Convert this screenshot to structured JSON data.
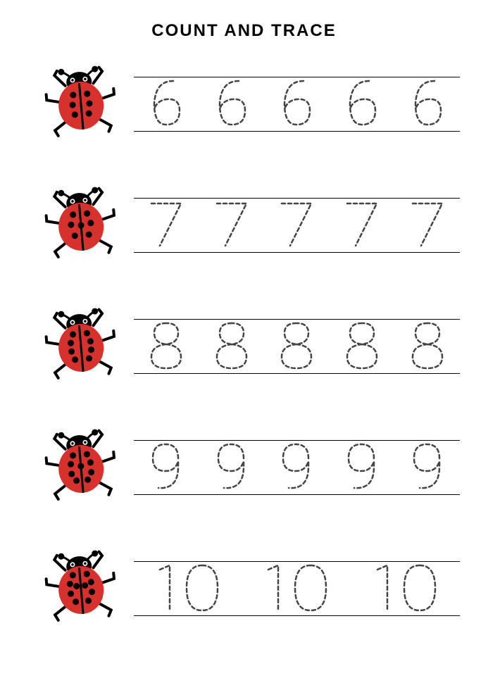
{
  "title": "COUNT AND TRACE",
  "title_fontsize": 24,
  "title_color": "#000000",
  "background_color": "#ffffff",
  "line_color": "#000000",
  "trace_stroke_color": "#444444",
  "trace_dash": "5 4",
  "ladybug": {
    "body_color": "#d7312e",
    "head_color": "#000000",
    "spot_color": "#000000",
    "leg_color": "#000000",
    "eye_color": "#ffffff"
  },
  "rows": [
    {
      "number": "6",
      "spots": 6,
      "repeats": 5
    },
    {
      "number": "7",
      "spots": 7,
      "repeats": 5
    },
    {
      "number": "8",
      "spots": 8,
      "repeats": 5
    },
    {
      "number": "9",
      "spots": 9,
      "repeats": 5
    },
    {
      "number": "10",
      "spots": 10,
      "repeats": 3
    }
  ]
}
